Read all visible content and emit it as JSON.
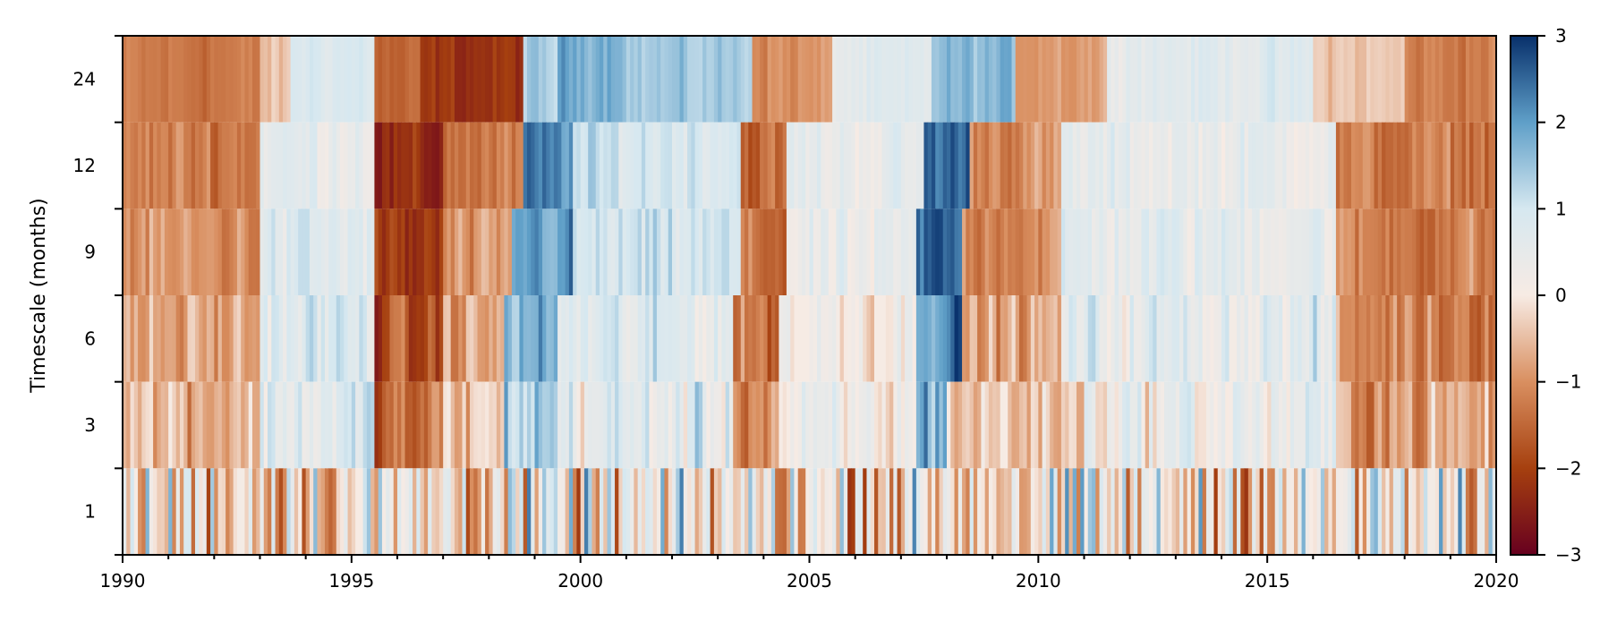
{
  "chart_data": {
    "type": "heatmap",
    "title": "",
    "xlabel": "",
    "ylabel": "Timescale (months)",
    "x_range": [
      1990,
      2020
    ],
    "x_ticks": [
      "1990",
      "1995",
      "2000",
      "2005",
      "2010",
      "2015",
      "2020"
    ],
    "x_minor_step_years": 1,
    "rows": [
      "1",
      "3",
      "6",
      "9",
      "12",
      "24"
    ],
    "colorbar": {
      "min": -3,
      "max": 3,
      "ticks": [
        "3",
        "2",
        "1",
        "0",
        "−1",
        "−2",
        "−3"
      ],
      "colormap": "diverging brown-white-blue",
      "colors": [
        "#67001f",
        "#a6400f",
        "#d98f60",
        "#f7ebe4",
        "#d6e8f0",
        "#5f9fc8",
        "#08306b"
      ]
    },
    "series": [
      {
        "timescale": "24",
        "segments": [
          {
            "from": 1990.0,
            "to": 1993.0,
            "value": -1.3
          },
          {
            "from": 1993.0,
            "to": 1993.6,
            "value": -0.5
          },
          {
            "from": 1993.6,
            "to": 1995.5,
            "value": 0.9
          },
          {
            "from": 1995.5,
            "to": 1996.5,
            "value": -1.6
          },
          {
            "from": 1996.5,
            "to": 1998.7,
            "value": -2.2
          },
          {
            "from": 1998.7,
            "to": 1999.5,
            "value": 1.3
          },
          {
            "from": 1999.5,
            "to": 2001.0,
            "value": 1.9
          },
          {
            "from": 2001.0,
            "to": 2003.7,
            "value": 1.4
          },
          {
            "from": 2003.7,
            "to": 2005.5,
            "value": -1.0
          },
          {
            "from": 2005.5,
            "to": 2007.6,
            "value": 0.6
          },
          {
            "from": 2007.6,
            "to": 2009.5,
            "value": 1.6
          },
          {
            "from": 2009.5,
            "to": 2011.5,
            "value": -0.8
          },
          {
            "from": 2011.5,
            "to": 2016.0,
            "value": 0.7
          },
          {
            "from": 2016.0,
            "to": 2018.0,
            "value": -0.4
          },
          {
            "from": 2018.0,
            "to": 2020.0,
            "value": -1.2
          }
        ]
      },
      {
        "timescale": "12",
        "segments": [
          {
            "from": 1990.0,
            "to": 1993.0,
            "value": -1.2
          },
          {
            "from": 1993.0,
            "to": 1995.5,
            "value": 0.6
          },
          {
            "from": 1995.5,
            "to": 1997.0,
            "value": -2.4
          },
          {
            "from": 1997.0,
            "to": 1998.7,
            "value": -1.3
          },
          {
            "from": 1998.7,
            "to": 1999.8,
            "value": 2.2
          },
          {
            "from": 1999.8,
            "to": 2003.5,
            "value": 1.0
          },
          {
            "from": 2003.5,
            "to": 2004.5,
            "value": -1.5
          },
          {
            "from": 2004.5,
            "to": 2007.5,
            "value": 0.5
          },
          {
            "from": 2007.5,
            "to": 2008.5,
            "value": 2.5
          },
          {
            "from": 2008.5,
            "to": 2010.5,
            "value": -1.0
          },
          {
            "from": 2010.5,
            "to": 2016.5,
            "value": 0.5
          },
          {
            "from": 2016.5,
            "to": 2020.0,
            "value": -1.3
          }
        ]
      },
      {
        "timescale": "9",
        "segments": [
          {
            "from": 1990.0,
            "to": 1993.0,
            "value": -1.0
          },
          {
            "from": 1993.0,
            "to": 1995.5,
            "value": 0.7
          },
          {
            "from": 1995.5,
            "to": 1997.0,
            "value": -2.2
          },
          {
            "from": 1997.0,
            "to": 1998.5,
            "value": -1.1
          },
          {
            "from": 1998.5,
            "to": 1999.8,
            "value": 2.0
          },
          {
            "from": 1999.8,
            "to": 2003.5,
            "value": 0.9
          },
          {
            "from": 2003.5,
            "to": 2004.5,
            "value": -1.4
          },
          {
            "from": 2004.5,
            "to": 2007.3,
            "value": 0.3
          },
          {
            "from": 2007.3,
            "to": 2008.3,
            "value": 2.5
          },
          {
            "from": 2008.3,
            "to": 2010.5,
            "value": -1.0
          },
          {
            "from": 2010.5,
            "to": 2016.5,
            "value": 0.6
          },
          {
            "from": 2016.5,
            "to": 2020.0,
            "value": -1.2
          }
        ]
      },
      {
        "timescale": "6",
        "segments": [
          {
            "from": 1990.0,
            "to": 1993.0,
            "value": -0.8
          },
          {
            "from": 1993.0,
            "to": 1995.5,
            "value": 0.8
          },
          {
            "from": 1995.5,
            "to": 1997.0,
            "value": -1.9
          },
          {
            "from": 1997.0,
            "to": 1998.3,
            "value": -0.8
          },
          {
            "from": 1998.3,
            "to": 1999.5,
            "value": 1.7
          },
          {
            "from": 1999.5,
            "to": 2003.3,
            "value": 0.7
          },
          {
            "from": 2003.3,
            "to": 2004.3,
            "value": -1.3
          },
          {
            "from": 2004.3,
            "to": 2007.3,
            "value": 0.2
          },
          {
            "from": 2007.3,
            "to": 2008.3,
            "value": 2.3
          },
          {
            "from": 2008.3,
            "to": 2010.5,
            "value": -0.8
          },
          {
            "from": 2010.5,
            "to": 2016.5,
            "value": 0.6
          },
          {
            "from": 2016.5,
            "to": 2020.0,
            "value": -1.1
          }
        ]
      },
      {
        "timescale": "3",
        "segments": [
          {
            "from": 1990.0,
            "to": 1993.0,
            "value": -0.5
          },
          {
            "from": 1993.0,
            "to": 1995.5,
            "value": 0.7
          },
          {
            "from": 1995.5,
            "to": 1997.0,
            "value": -1.5
          },
          {
            "from": 1997.0,
            "to": 1998.3,
            "value": -0.4
          },
          {
            "from": 1998.3,
            "to": 1999.5,
            "value": 1.4
          },
          {
            "from": 1999.5,
            "to": 2003.3,
            "value": 0.6
          },
          {
            "from": 2003.3,
            "to": 2004.3,
            "value": -0.9
          },
          {
            "from": 2004.3,
            "to": 2007.3,
            "value": 0.1
          },
          {
            "from": 2007.3,
            "to": 2008.0,
            "value": 2.0
          },
          {
            "from": 2008.0,
            "to": 2011.0,
            "value": -0.4
          },
          {
            "from": 2011.0,
            "to": 2016.5,
            "value": 0.4
          },
          {
            "from": 2016.5,
            "to": 2020.0,
            "value": -0.8
          }
        ]
      },
      {
        "timescale": "1",
        "segments": [
          {
            "from": 1990.0,
            "to": 2020.0,
            "value": 0.0
          }
        ]
      }
    ],
    "row_variability": {
      "24": 0.55,
      "12": 0.85,
      "9": 1.0,
      "6": 1.2,
      "3": 1.5,
      "1": 1.9
    }
  }
}
